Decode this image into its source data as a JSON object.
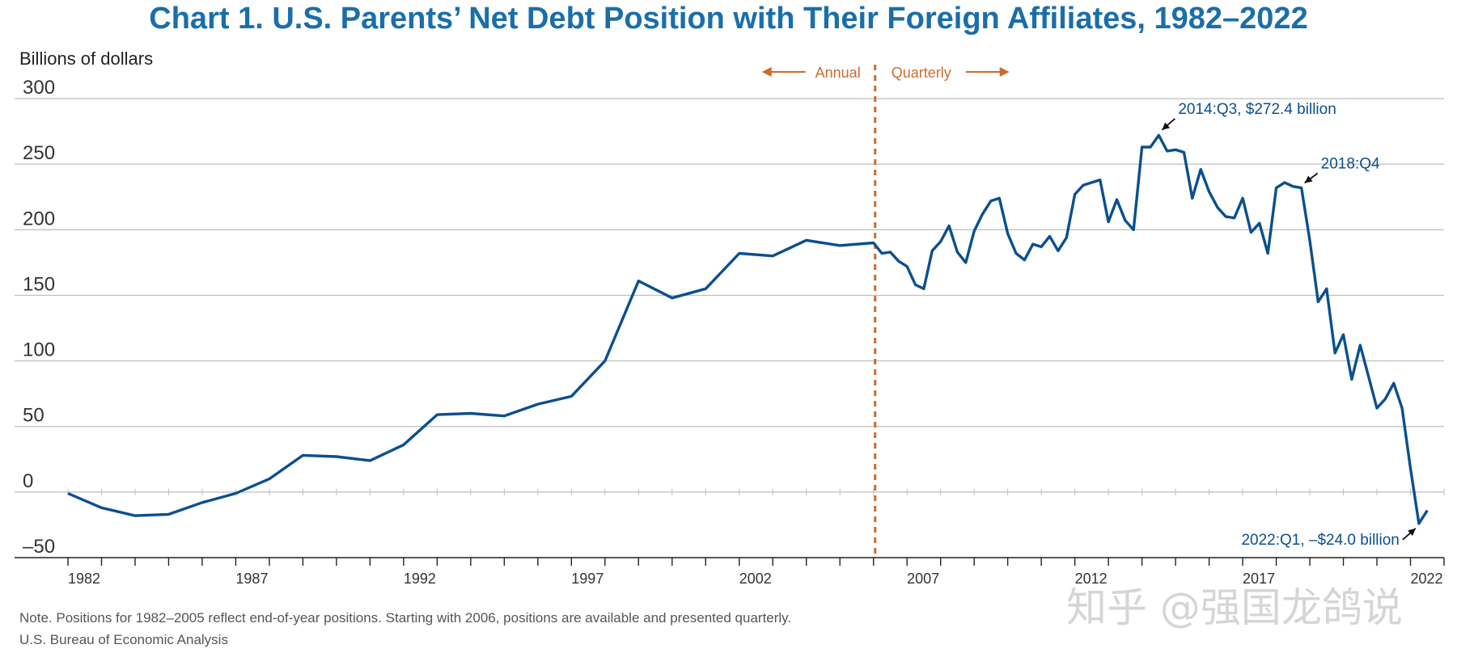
{
  "watermark": "知乎 @强国龙鸽说",
  "colors": {
    "title": "#1a6eaa",
    "line": "#0b4f8e",
    "divider": "#cc6c2c",
    "grid": "#bdbdbd",
    "axis": "#222222",
    "annotation": "#0b4f8e"
  },
  "chart_data": {
    "type": "line",
    "title": "Chart 1. U.S. Parents’ Net Debt Position with Their Foreign Affiliates, 1982–2022",
    "ylabel": "Billions of dollars",
    "ylim": [
      -50,
      300
    ],
    "yticks": [
      300,
      250,
      200,
      150,
      100,
      50,
      0,
      -50
    ],
    "ytick_labels": [
      "300",
      "250",
      "200",
      "150",
      "100",
      "50",
      "0",
      "–50"
    ],
    "xlim": [
      1982,
      2023
    ],
    "xticks": [
      1982,
      1987,
      1992,
      1997,
      2002,
      2007,
      2012,
      2017,
      2022
    ],
    "xtick_labels": [
      "1982",
      "1987",
      "1992",
      "1997",
      "2002",
      "2007",
      "2012",
      "2017",
      "2022"
    ],
    "grid": true,
    "divider": {
      "x": 2006,
      "left_label": "Annual",
      "right_label": "Quarterly"
    },
    "series": [
      {
        "x": [
          1982,
          1983,
          1984,
          1985,
          1986,
          1987,
          1988,
          1989,
          1990,
          1991,
          1992,
          1993,
          1994,
          1995,
          1996,
          1997,
          1998,
          1999,
          2000,
          2001,
          2002,
          2003,
          2004,
          2005,
          2006,
          2006.25,
          2006.5,
          2006.75,
          2007,
          2007.25,
          2007.5,
          2007.75,
          2008,
          2008.25,
          2008.5,
          2008.75,
          2009,
          2009.25,
          2009.5,
          2009.75,
          2010,
          2010.25,
          2010.5,
          2010.75,
          2011,
          2011.25,
          2011.5,
          2011.75,
          2012,
          2012.25,
          2012.5,
          2012.75,
          2013,
          2013.25,
          2013.5,
          2013.75,
          2014,
          2014.25,
          2014.5,
          2014.75,
          2015,
          2015.25,
          2015.5,
          2015.75,
          2016,
          2016.25,
          2016.5,
          2016.75,
          2017,
          2017.25,
          2017.5,
          2017.75,
          2018,
          2018.25,
          2018.5,
          2018.75,
          2019,
          2019.25,
          2019.5,
          2019.75,
          2020,
          2020.25,
          2020.5,
          2020.75,
          2021,
          2021.25,
          2021.5,
          2021.75,
          2022,
          2022.25,
          2022.5
        ],
        "y": [
          -1,
          -12,
          -18,
          -17,
          -8,
          -1,
          10,
          28,
          27,
          24,
          36,
          59,
          60,
          58,
          67,
          73,
          100,
          161,
          148,
          155,
          182,
          180,
          192,
          188,
          190,
          182,
          183,
          176,
          172,
          158,
          155,
          184,
          191,
          203,
          183,
          175,
          199,
          212,
          222,
          224,
          197,
          182,
          177,
          189,
          187,
          195,
          184,
          194,
          227,
          234,
          236,
          238,
          206,
          223,
          207,
          200,
          263,
          263,
          272,
          260,
          261,
          259,
          224,
          246,
          229,
          217,
          210,
          209,
          224,
          198,
          205,
          182,
          232,
          236,
          233,
          232,
          192,
          145,
          155,
          106,
          120,
          86,
          112,
          88,
          64,
          71,
          83,
          64,
          18,
          -24,
          -14
        ]
      }
    ],
    "annotations": [
      {
        "text": "2014:Q3, $272.4 billion",
        "x": 2014.5,
        "y": 272.4
      },
      {
        "text": "2018:Q4",
        "x": 2018.75,
        "y": 232
      },
      {
        "text": "2022:Q1, –$24.0 billion",
        "x": 2022.25,
        "y": -24
      }
    ],
    "note": "Note. Positions for 1982–2005 reflect end-of-year positions. Starting with 2006, positions are available and presented quarterly.",
    "source": "U.S. Bureau of Economic Analysis"
  }
}
